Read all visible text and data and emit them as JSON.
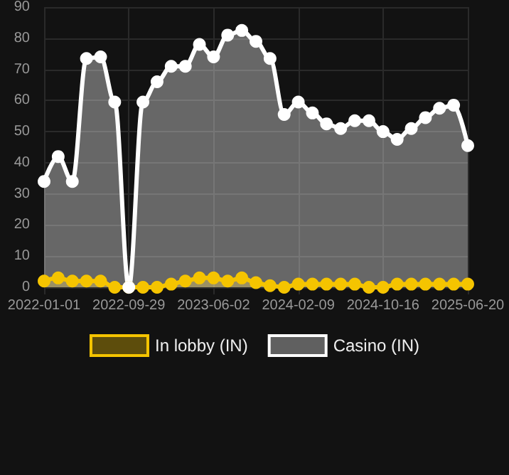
{
  "chart_data": {
    "type": "area",
    "categories": [
      "2022-01-01",
      null,
      null,
      null,
      null,
      null,
      "2022-09-29",
      null,
      null,
      null,
      null,
      null,
      "2023-06-02",
      null,
      null,
      null,
      null,
      null,
      "2024-02-09",
      null,
      null,
      null,
      null,
      null,
      "2024-10-16",
      null,
      null,
      null,
      null,
      null,
      "2025-06-20"
    ],
    "series": [
      {
        "name": "In lobby (IN)",
        "color": "#f5c400",
        "values": [
          2,
          3,
          2,
          2,
          2,
          0,
          0,
          0,
          0,
          1,
          2,
          3,
          3,
          2,
          3,
          1.5,
          0.5,
          0,
          1,
          1,
          1,
          1,
          1,
          0,
          0,
          1,
          1,
          1,
          1,
          1,
          1
        ]
      },
      {
        "name": "Casino (IN)",
        "color": "#ffffff",
        "values": [
          34,
          42,
          34,
          73.5,
          74,
          59.5,
          0,
          59.5,
          66,
          71,
          71,
          78,
          74,
          81,
          82.5,
          79,
          73.5,
          55.5,
          59.5,
          56,
          52.5,
          51,
          53.5,
          53.5,
          50,
          47.5,
          51,
          54.5,
          57.5,
          58.5,
          45.5
        ]
      }
    ],
    "ylim": [
      0,
      90
    ],
    "yticks": [
      0,
      10,
      20,
      30,
      40,
      50,
      60,
      70,
      80,
      90
    ],
    "grid": true,
    "legend": "bottom",
    "marker": "circle",
    "line_style": "solid"
  }
}
